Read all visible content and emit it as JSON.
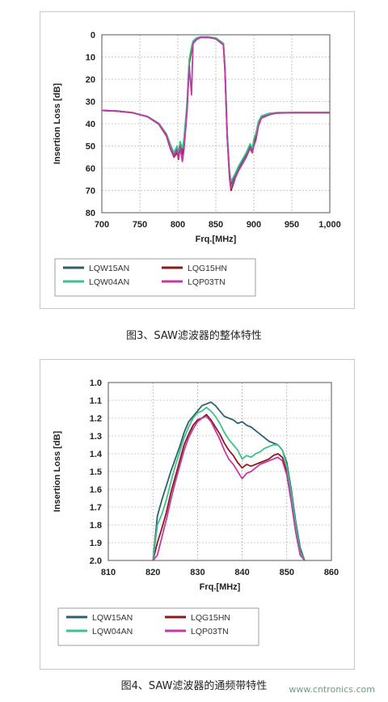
{
  "chart_data": [
    {
      "type": "line",
      "title": "",
      "xlabel": "Frq.[MHz]",
      "ylabel": "Insertion Loss [dB]",
      "xlim": [
        700,
        1000
      ],
      "ylim": [
        80,
        0
      ],
      "y_inverted": true,
      "xticks": [
        "700",
        "750",
        "800",
        "850",
        "900",
        "950",
        "1,000"
      ],
      "yticks": [
        "0",
        "10",
        "20",
        "30",
        "40",
        "50",
        "60",
        "70",
        "80"
      ],
      "grid": true,
      "legend_position": "bottom",
      "series": [
        {
          "name": "LQW15AN",
          "color": "#2f5f6f",
          "x": [
            700,
            720,
            740,
            760,
            775,
            785,
            790,
            795,
            799,
            801,
            803,
            806,
            808,
            812,
            815,
            818,
            820,
            825,
            830,
            840,
            850,
            860,
            862,
            865,
            868,
            870,
            873,
            876,
            880,
            885,
            890,
            895,
            898,
            900,
            903,
            906,
            910,
            920,
            930,
            950,
            980,
            1000
          ],
          "y": [
            34,
            34.3,
            35,
            36.8,
            40,
            45,
            50,
            54,
            51,
            54,
            49,
            52,
            48,
            32,
            12,
            6,
            3,
            1.5,
            1,
            1,
            1.5,
            4,
            15,
            45,
            62,
            67,
            65,
            63,
            60,
            57,
            54,
            50,
            52,
            48,
            45,
            40,
            37,
            35.5,
            35,
            35,
            35,
            35
          ]
        },
        {
          "name": "LQG15HN",
          "color": "#8b1a1a",
          "x": [
            700,
            720,
            740,
            760,
            775,
            785,
            790,
            795,
            799,
            801,
            803,
            806,
            808,
            812,
            815,
            818,
            820,
            825,
            830,
            840,
            850,
            860,
            862,
            865,
            868,
            870,
            873,
            876,
            880,
            885,
            890,
            895,
            898,
            900,
            903,
            906,
            910,
            920,
            930,
            950,
            980,
            1000
          ],
          "y": [
            34,
            34.3,
            35,
            36.8,
            40.2,
            45.5,
            51,
            55,
            53,
            56,
            51,
            54,
            50,
            34,
            13,
            7,
            3.5,
            2,
            1.2,
            1.2,
            1.8,
            4.5,
            16,
            46,
            64,
            70,
            67,
            64,
            61,
            58,
            55,
            51,
            53,
            49,
            46,
            41,
            37.5,
            36,
            35.2,
            35,
            35,
            35
          ]
        },
        {
          "name": "LQW04AN",
          "color": "#3cc28a",
          "x": [
            700,
            720,
            740,
            760,
            775,
            785,
            790,
            795,
            799,
            801,
            803,
            806,
            808,
            812,
            815,
            818,
            820,
            825,
            830,
            840,
            850,
            860,
            862,
            865,
            868,
            870,
            873,
            876,
            880,
            885,
            890,
            895,
            898,
            900,
            903,
            906,
            910,
            920,
            930,
            950,
            980,
            1000
          ],
          "y": [
            34,
            34.2,
            35,
            36.7,
            39.8,
            44.5,
            49,
            53,
            50,
            53,
            48,
            51,
            47,
            31,
            11,
            5.5,
            2.8,
            1.3,
            0.9,
            0.9,
            1.4,
            3.8,
            14,
            44,
            61,
            66,
            64,
            62,
            59,
            56,
            53,
            49,
            51,
            47,
            44,
            39,
            36.5,
            35.3,
            35,
            35,
            35,
            35
          ]
        },
        {
          "name": "LQP03TN",
          "color": "#c23aa8",
          "x": [
            700,
            720,
            740,
            760,
            775,
            785,
            790,
            795,
            799,
            801,
            803,
            806,
            808,
            812,
            815,
            818,
            820,
            825,
            830,
            840,
            850,
            860,
            862,
            865,
            868,
            870,
            873,
            876,
            880,
            885,
            890,
            895,
            898,
            900,
            903,
            906,
            910,
            920,
            930,
            950,
            980,
            1000
          ],
          "y": [
            34,
            34.3,
            35,
            36.8,
            40.1,
            45.2,
            50.5,
            54.5,
            52,
            55.5,
            50,
            57,
            52,
            35,
            14,
            27,
            4,
            2,
            1.2,
            1.2,
            1.8,
            4.5,
            16,
            46,
            63,
            69,
            66,
            64,
            61,
            58,
            55,
            51,
            53,
            50,
            47,
            41,
            37.5,
            36,
            35.2,
            35,
            35,
            35
          ]
        }
      ]
    },
    {
      "type": "line",
      "title": "",
      "xlabel": "Frq.[MHz]",
      "ylabel": "Insertion Loss [dB]",
      "xlim": [
        810,
        860
      ],
      "ylim": [
        2.0,
        1.0
      ],
      "y_inverted": true,
      "xticks": [
        "810",
        "820",
        "830",
        "840",
        "850",
        "860"
      ],
      "yticks": [
        "1.0",
        "1.1",
        "1.2",
        "1.3",
        "1.4",
        "1.5",
        "1.6",
        "1.7",
        "1.8",
        "1.9",
        "2.0"
      ],
      "grid": true,
      "legend_position": "bottom",
      "series": [
        {
          "name": "LQW15AN",
          "color": "#2f5f6f",
          "x": [
            820,
            821,
            822,
            823,
            824,
            825,
            826,
            827,
            828,
            829,
            830,
            831,
            832,
            833,
            834,
            835,
            836,
            837,
            838,
            839,
            840,
            841,
            842,
            843,
            844,
            845,
            846,
            847,
            848,
            849,
            850,
            851,
            852,
            853,
            854
          ],
          "y": [
            2.0,
            1.75,
            1.66,
            1.58,
            1.5,
            1.43,
            1.36,
            1.28,
            1.22,
            1.19,
            1.16,
            1.13,
            1.12,
            1.11,
            1.13,
            1.16,
            1.19,
            1.2,
            1.21,
            1.23,
            1.22,
            1.24,
            1.25,
            1.27,
            1.29,
            1.31,
            1.33,
            1.34,
            1.35,
            1.38,
            1.45,
            1.6,
            1.78,
            1.93,
            2.0
          ]
        },
        {
          "name": "LQG15HN",
          "color": "#8b1a1a",
          "x": [
            820,
            821,
            822,
            823,
            824,
            825,
            826,
            827,
            828,
            829,
            830,
            831,
            832,
            833,
            834,
            835,
            836,
            837,
            838,
            839,
            840,
            841,
            842,
            843,
            844,
            845,
            846,
            847,
            848,
            849,
            850,
            851,
            852,
            853,
            854
          ],
          "y": [
            2.0,
            1.9,
            1.82,
            1.73,
            1.62,
            1.53,
            1.44,
            1.35,
            1.29,
            1.24,
            1.21,
            1.2,
            1.18,
            1.21,
            1.25,
            1.29,
            1.34,
            1.38,
            1.41,
            1.45,
            1.48,
            1.46,
            1.47,
            1.46,
            1.45,
            1.44,
            1.43,
            1.41,
            1.4,
            1.42,
            1.5,
            1.65,
            1.82,
            1.96,
            2.0
          ]
        },
        {
          "name": "LQW04AN",
          "color": "#3cc28a",
          "x": [
            820,
            821,
            822,
            823,
            824,
            825,
            826,
            827,
            828,
            829,
            830,
            831,
            832,
            833,
            834,
            835,
            836,
            837,
            838,
            839,
            840,
            841,
            842,
            843,
            844,
            845,
            846,
            847,
            848,
            849,
            850,
            851,
            852,
            853,
            854
          ],
          "y": [
            2.0,
            1.8,
            1.74,
            1.66,
            1.56,
            1.47,
            1.39,
            1.31,
            1.25,
            1.2,
            1.17,
            1.16,
            1.14,
            1.16,
            1.19,
            1.23,
            1.28,
            1.32,
            1.35,
            1.38,
            1.43,
            1.41,
            1.42,
            1.4,
            1.39,
            1.37,
            1.36,
            1.35,
            1.35,
            1.38,
            1.47,
            1.62,
            1.8,
            1.95,
            2.0
          ]
        },
        {
          "name": "LQP03TN",
          "color": "#c23aa8",
          "x": [
            820,
            821,
            822,
            823,
            824,
            825,
            826,
            827,
            828,
            829,
            830,
            831,
            832,
            833,
            834,
            835,
            836,
            837,
            838,
            839,
            840,
            841,
            842,
            843,
            844,
            845,
            846,
            847,
            848,
            849,
            850,
            851,
            852,
            853,
            854
          ],
          "y": [
            2.0,
            1.97,
            1.87,
            1.77,
            1.66,
            1.56,
            1.47,
            1.38,
            1.31,
            1.26,
            1.22,
            1.2,
            1.19,
            1.22,
            1.27,
            1.32,
            1.38,
            1.43,
            1.46,
            1.5,
            1.54,
            1.51,
            1.5,
            1.48,
            1.46,
            1.45,
            1.44,
            1.43,
            1.42,
            1.44,
            1.52,
            1.67,
            1.84,
            1.97,
            2.0
          ]
        }
      ]
    }
  ],
  "captions": {
    "fig3": "图3、SAW滤波器的整体特性",
    "fig4": "图4、SAW滤波器的通频带特性"
  },
  "watermark": "www.cntronics.com"
}
